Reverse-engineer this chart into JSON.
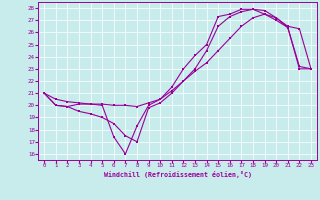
{
  "xlabel": "Windchill (Refroidissement éolien,°C)",
  "background_color": "#c8ecec",
  "line_color": "#990099",
  "xlim": [
    -0.5,
    23.5
  ],
  "ylim": [
    15.5,
    28.5
  ],
  "xticks": [
    0,
    1,
    2,
    3,
    4,
    5,
    6,
    7,
    8,
    9,
    10,
    11,
    12,
    13,
    14,
    15,
    16,
    17,
    18,
    19,
    20,
    21,
    22,
    23
  ],
  "yticks": [
    16,
    17,
    18,
    19,
    20,
    21,
    22,
    23,
    24,
    25,
    26,
    27,
    28
  ],
  "line1_x": [
    0,
    1,
    2,
    3,
    4,
    5,
    6,
    7,
    8,
    9,
    10,
    11,
    12,
    13,
    14,
    15,
    16,
    17,
    18,
    19,
    20,
    21,
    22,
    23
  ],
  "line1_y": [
    21,
    20,
    19.9,
    20.1,
    20.1,
    20.0,
    17.4,
    16.0,
    18.3,
    20.0,
    20.5,
    21.5,
    23.0,
    24.1,
    25.0,
    27.3,
    27.5,
    27.9,
    27.9,
    27.8,
    27.2,
    26.4,
    23.0,
    23.0
  ],
  "line2_x": [
    0,
    1,
    2,
    3,
    4,
    5,
    6,
    7,
    8,
    9,
    10,
    11,
    12,
    13,
    14,
    15,
    16,
    17,
    18,
    19,
    20,
    21,
    22,
    23
  ],
  "line2_y": [
    21,
    20,
    19.9,
    19.5,
    19.3,
    19.0,
    18.5,
    17.5,
    17.0,
    19.8,
    20.2,
    21.0,
    22.0,
    23.0,
    24.5,
    26.5,
    27.3,
    27.7,
    27.9,
    27.5,
    27.2,
    26.5,
    26.3,
    23.0
  ],
  "line3_x": [
    0,
    1,
    2,
    3,
    4,
    5,
    6,
    7,
    8,
    9,
    10,
    11,
    12,
    13,
    14,
    15,
    16,
    17,
    18,
    19,
    20,
    21,
    22,
    23
  ],
  "line3_y": [
    21,
    20.5,
    20.3,
    20.2,
    20.1,
    20.1,
    20.0,
    20.0,
    19.9,
    20.2,
    20.5,
    21.2,
    22.0,
    22.8,
    23.5,
    24.5,
    25.5,
    26.5,
    27.2,
    27.5,
    27.0,
    26.4,
    23.2,
    23.0
  ]
}
